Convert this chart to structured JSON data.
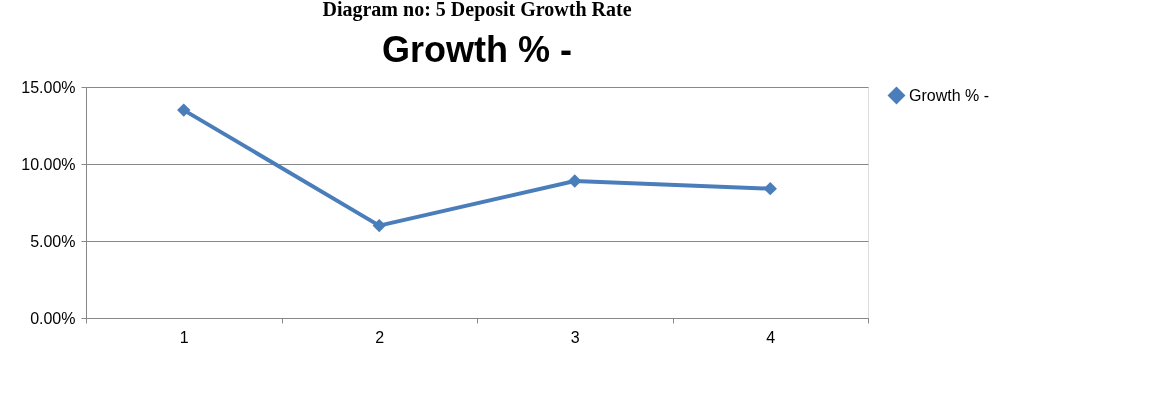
{
  "chart_data": {
    "type": "line",
    "title": "Diagram no: 5 Deposit Growth Rate",
    "subtitle": "Growth % -",
    "categories": [
      "1",
      "2",
      "3",
      "4"
    ],
    "series": [
      {
        "name": "Growth % -",
        "color": "#4a7ebb",
        "values": [
          13.5,
          6.0,
          8.9,
          8.4
        ]
      }
    ],
    "ylim": [
      0,
      15
    ],
    "yticks": [
      {
        "value": 0,
        "label": "0.00%"
      },
      {
        "value": 5,
        "label": "5.00%"
      },
      {
        "value": 10,
        "label": "10.00%"
      },
      {
        "value": 15,
        "label": "15.00%"
      }
    ],
    "grid": "y",
    "legend": "right",
    "marker": "diamond",
    "line_style": "solid"
  }
}
